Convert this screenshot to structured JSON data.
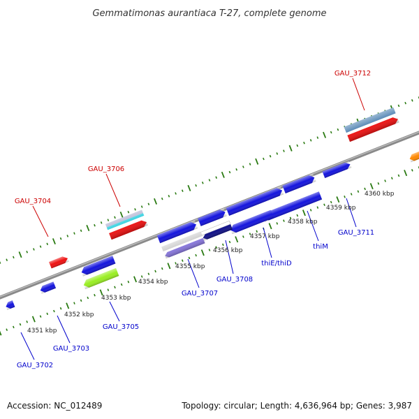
{
  "title": "Gemmatimonas aurantiaca T-27, complete genome",
  "footer": {
    "accession": "Accession: NC_012489",
    "summary": "Topology: circular; Length: 4,636,964 bp; Genes: 3,987"
  },
  "colors": {
    "backbone": "#8a8a8a",
    "tick": "#2a7a12",
    "label_forward": "#cc0000",
    "label_reverse": "#0000cc",
    "red": "#ee1111",
    "blue": "#1414dd",
    "steel": "#4a7fb0",
    "cyan": "#22ccdd",
    "lime": "#99ee22",
    "orange": "#ff8800",
    "navy": "#111188",
    "lavender": "#8877dd",
    "silver": "#cccccc"
  },
  "scale_labels": [
    "4351 kbp",
    "4352 kbp",
    "4353 kbp",
    "4354 kbp",
    "4355 kbp",
    "4356 kbp",
    "4357 kbp",
    "4358 kbp",
    "4359 kbp",
    "4360 kbp"
  ],
  "gene_labels": [
    {
      "text": "GAU_3712",
      "strand": "forward"
    },
    {
      "text": "GAU_3706",
      "strand": "forward"
    },
    {
      "text": "GAU_3704",
      "strand": "forward"
    },
    {
      "text": "GAU_3711",
      "strand": "reverse"
    },
    {
      "text": "thiM",
      "strand": "reverse"
    },
    {
      "text": "thiE/thiD",
      "strand": "reverse"
    },
    {
      "text": "GAU_3708",
      "strand": "reverse"
    },
    {
      "text": "GAU_3707",
      "strand": "reverse"
    },
    {
      "text": "GAU_3705",
      "strand": "reverse"
    },
    {
      "text": "GAU_3703",
      "strand": "reverse"
    },
    {
      "text": "GAU_3702",
      "strand": "reverse"
    }
  ]
}
